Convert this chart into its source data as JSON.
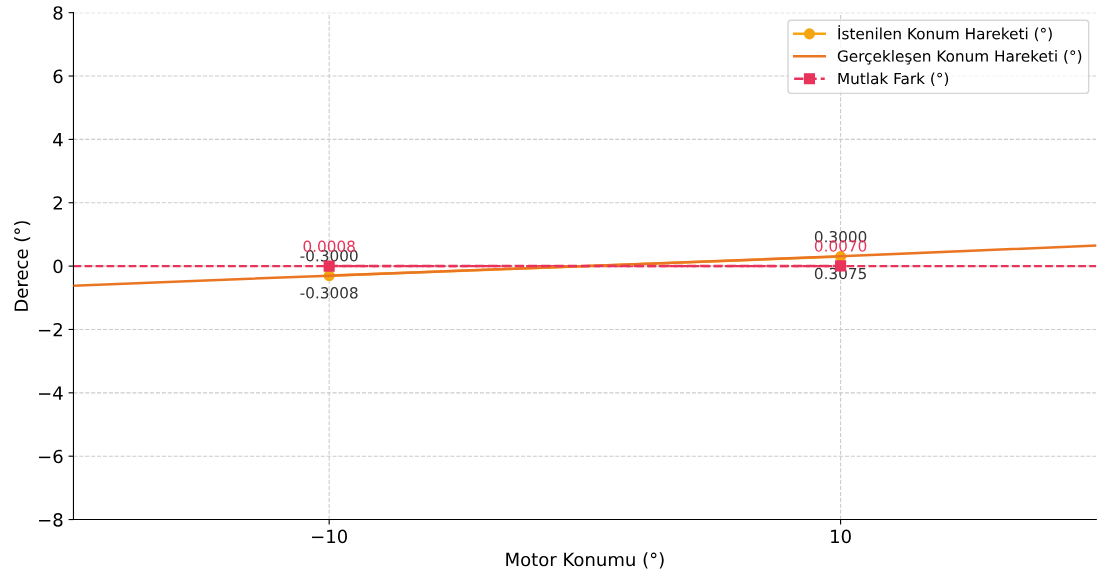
{
  "chart_data": {
    "type": "line",
    "xlabel": "Motor Konumu (°)",
    "ylabel": "Derece (°)",
    "xlim": [
      -20,
      20
    ],
    "xticks": [
      {
        "value": -10,
        "label": "−10"
      },
      10
    ],
    "ylim": [
      -8,
      8
    ],
    "yticks": [
      {
        "value": -8,
        "label": "−8"
      },
      {
        "value": -6,
        "label": "−6"
      },
      {
        "value": -4,
        "label": "−4"
      },
      {
        "value": -2,
        "label": "−2"
      },
      0,
      2,
      4,
      6,
      8
    ],
    "grid": true,
    "legend": "top right",
    "series": [
      {
        "name": "İstenilen Konum Hareketi (°)",
        "color": "#f5a50f",
        "x": [
          -10,
          10
        ],
        "values": [
          -0.3,
          0.3
        ],
        "marker": "circle",
        "line_style": "solid",
        "value_labels": [
          "-0.3000",
          "0.3000"
        ]
      },
      {
        "name": "Gerçekleşen Konum Hareketi (°)",
        "color": "#ea7624",
        "x": [
          -20,
          -10,
          10,
          20
        ],
        "values": [
          -0.62,
          -0.3008,
          0.3075,
          0.65
        ],
        "marker": "none",
        "line_style": "solid",
        "value_labels": [
          null,
          "-0.3008",
          "0.3075",
          null
        ]
      },
      {
        "name": "Mutlak Fark (°)",
        "color": "#e8335a",
        "x": [
          -10,
          10
        ],
        "values": [
          0.0008,
          0.007
        ],
        "marker": "square",
        "line_style": "dashed",
        "value_labels": [
          "0.0008",
          "0.0070"
        ]
      }
    ],
    "ref_lines": [
      {
        "axis": "y",
        "value": 0,
        "color": "#e8335a",
        "line_style": "dashed"
      }
    ]
  }
}
